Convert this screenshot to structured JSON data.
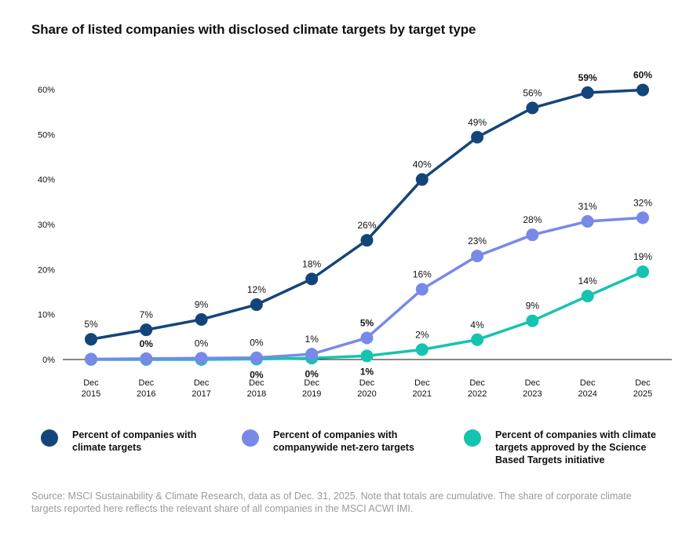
{
  "chart_data": {
    "type": "line",
    "title": "Share of listed companies with disclosed climate targets by target type",
    "xlabel": "",
    "ylabel": "",
    "x": [
      "Dec 2015",
      "Dec 2016",
      "Dec 2017",
      "Dec 2018",
      "Dec 2019",
      "Dec 2020",
      "Dec 2021",
      "Dec 2022",
      "Dec 2023",
      "Dec 2024",
      "Dec 2025"
    ],
    "x_lines": [
      [
        "Dec",
        "2015"
      ],
      [
        "Dec",
        "2016"
      ],
      [
        "Dec",
        "2017"
      ],
      [
        "Dec",
        "2018"
      ],
      [
        "Dec",
        "2019"
      ],
      [
        "Dec",
        "2020"
      ],
      [
        "Dec",
        "2021"
      ],
      [
        "Dec",
        "2022"
      ],
      [
        "Dec",
        "2023"
      ],
      [
        "Dec",
        "2024"
      ],
      [
        "Dec",
        "2025"
      ]
    ],
    "ylim": [
      0,
      60
    ],
    "yticks": [
      0,
      10,
      20,
      30,
      40,
      50,
      60
    ],
    "ytick_labels": [
      "0%",
      "10%",
      "20%",
      "30%",
      "40%",
      "50%",
      "60%"
    ],
    "grid": false,
    "legend_position": "bottom",
    "series": [
      {
        "name": "Percent of companies with climate targets",
        "color": "#14457a",
        "values": [
          4.5,
          6.6,
          8.9,
          12.2,
          17.9,
          26.5,
          40.0,
          49.4,
          55.9,
          59.3,
          59.9
        ],
        "labels": [
          "5%",
          "7%",
          "9%",
          "12%",
          "18%",
          "26%",
          "40%",
          "49%",
          "56%",
          "59%",
          "60%"
        ],
        "label_pos": [
          "above",
          "above",
          "above",
          "above",
          "above",
          "above",
          "above",
          "above",
          "above",
          "above",
          "above"
        ],
        "label_bold": [
          false,
          false,
          false,
          false,
          false,
          false,
          false,
          false,
          false,
          true,
          true
        ]
      },
      {
        "name": "Percent of companies with companywide net-zero targets",
        "color": "#7889e8",
        "values": [
          0.1,
          0.2,
          0.3,
          0.4,
          1.2,
          4.8,
          15.6,
          23.0,
          27.7,
          30.7,
          31.5
        ],
        "labels": [
          "",
          "0%",
          "0%",
          "0%",
          "1%",
          "5%",
          "16%",
          "23%",
          "28%",
          "31%",
          "32%"
        ],
        "label_pos": [
          "above",
          "above",
          "above",
          "above",
          "above",
          "above",
          "above",
          "above",
          "above",
          "above",
          "above"
        ],
        "label_bold": [
          false,
          true,
          false,
          false,
          false,
          true,
          false,
          false,
          false,
          false,
          false
        ]
      },
      {
        "name": "Percent of companies with climate targets approved by the Science Based Targets initiative",
        "color": "#14c4b0",
        "values": [
          0.0,
          0.0,
          0.0,
          0.1,
          0.3,
          0.8,
          2.2,
          4.4,
          8.6,
          14.1,
          19.5
        ],
        "labels": [
          "",
          "",
          "",
          "0%",
          "0%",
          "1%",
          "2%",
          "4%",
          "9%",
          "14%",
          "19%"
        ],
        "label_pos": [
          "below",
          "below",
          "below",
          "below",
          "below",
          "below",
          "above",
          "above",
          "above",
          "above",
          "above"
        ],
        "label_bold": [
          false,
          false,
          false,
          true,
          true,
          true,
          false,
          false,
          false,
          false,
          false
        ]
      }
    ]
  },
  "legend": [
    {
      "label": "Percent of companies with climate targets",
      "lines": [
        "Percent of companies with",
        "climate targets"
      ],
      "color": "#14457a"
    },
    {
      "label": "Percent of companies with companywide net-zero targets",
      "lines": [
        "Percent of companies with",
        "companywide net-zero targets"
      ],
      "color": "#7889e8"
    },
    {
      "label": "Percent of companies with climate targets approved by the Science Based Targets initiative",
      "lines": [
        "Percent of companies with climate",
        "targets approved by the Science",
        "Based Targets initiative"
      ],
      "color": "#14c4b0"
    }
  ],
  "source": "Source: MSCI Sustainability & Climate Research, data as of Dec. 31, 2025. Note that totals are cumulative. The share of corporate climate targets reported here reflects the relevant share of all companies in the MSCI ACWI IMI."
}
